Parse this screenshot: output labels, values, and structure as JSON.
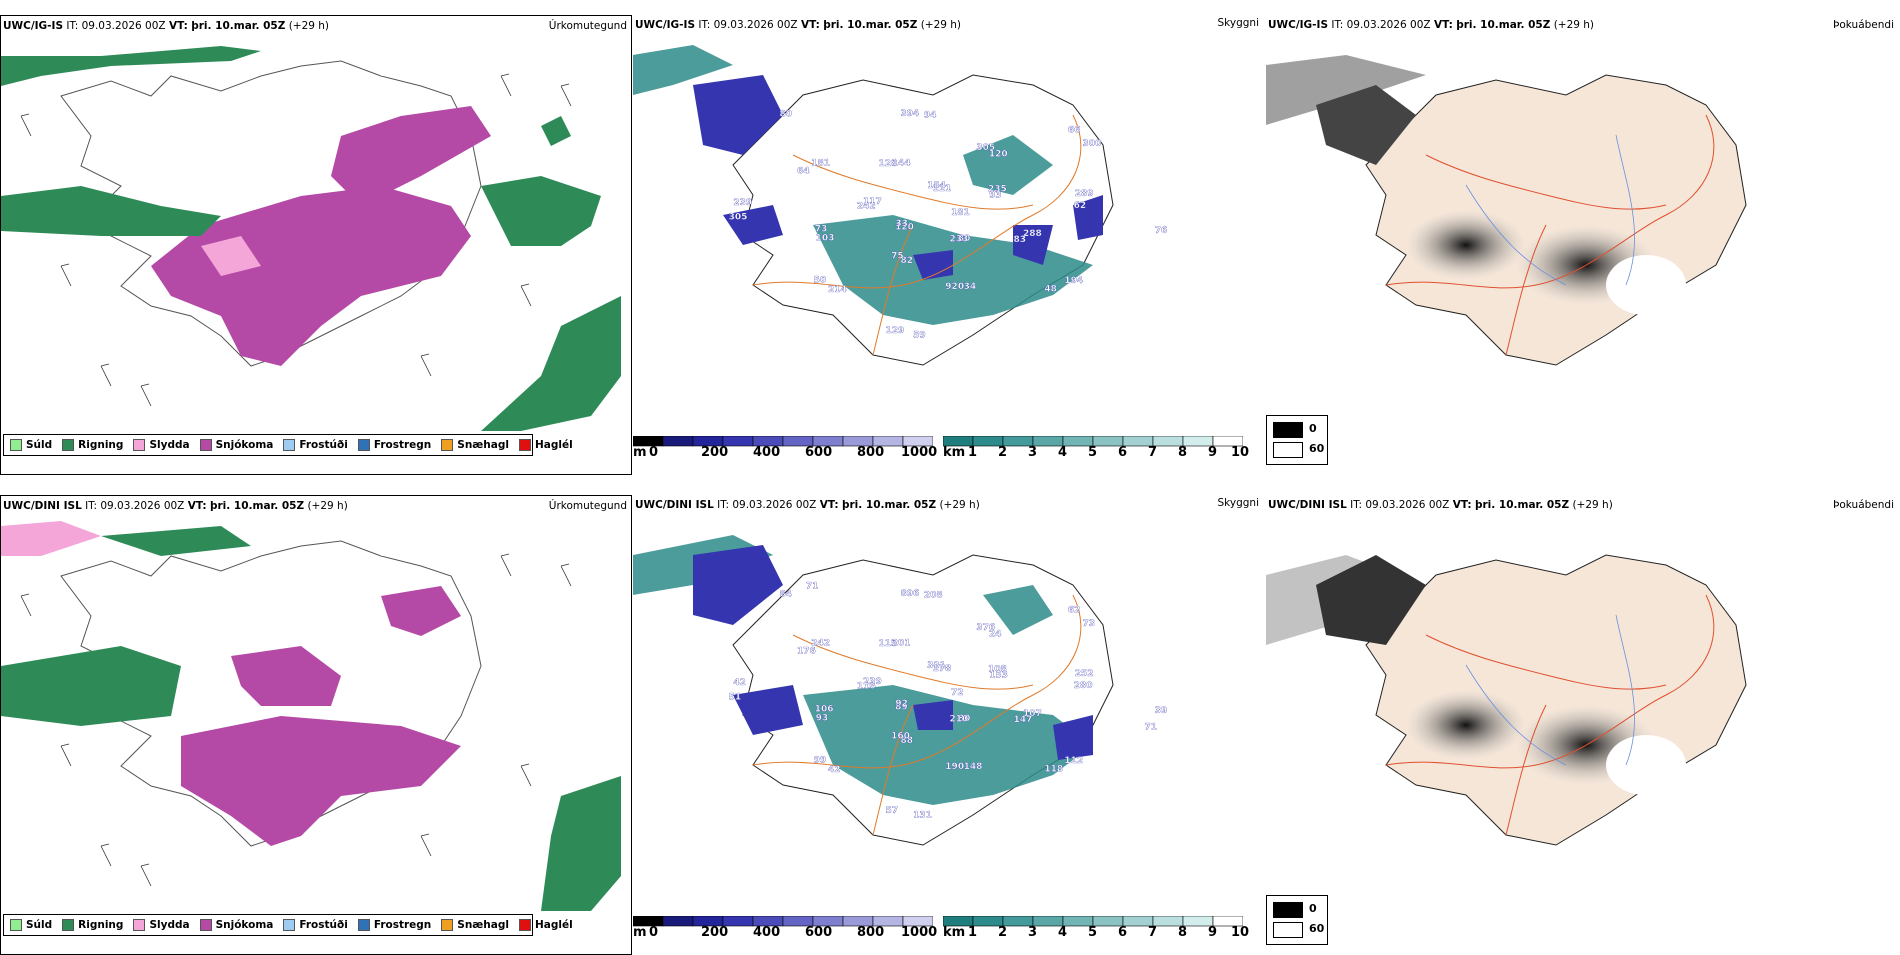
{
  "panels": {
    "top": {
      "precip": {
        "model": "UWC/IG-IS",
        "it": "IT: 09.03.2026 00Z",
        "vt_label": "VT:",
        "vt": "þri. 10.mar. 05Z",
        "lead": "(+29 h)",
        "type": "Úrkomutegund"
      },
      "cloud": {
        "model": "UWC/IG-IS",
        "it": "IT: 09.03.2026 00Z",
        "vt_label": "VT:",
        "vt": "þri. 10.mar. 05Z",
        "lead": "(+29 h)",
        "type": "Skyggni"
      },
      "vis": {
        "model": "UWC/IG-IS",
        "it": "IT: 09.03.2026 00Z",
        "vt_label": "VT:",
        "vt": "þri. 10.mar. 05Z",
        "lead": "(+29 h)",
        "type": "Þokuábendi"
      }
    },
    "bottom": {
      "precip": {
        "model": "UWC/DINI ISL",
        "it": "IT: 09.03.2026 00Z",
        "vt_label": "VT:",
        "vt": "þri. 10.mar. 05Z",
        "lead": "(+29 h)",
        "type": "Úrkomutegund"
      },
      "cloud": {
        "model": "UWC/DINI ISL",
        "it": "IT: 09.03.2026 00Z",
        "vt_label": "VT:",
        "vt": "þri. 10.mar. 05Z",
        "lead": "(+29 h)",
        "type": "Skyggni"
      },
      "vis": {
        "model": "UWC/DINI ISL",
        "it": "IT: 09.03.2026 00Z",
        "vt_label": "VT:",
        "vt": "þri. 10.mar. 05Z",
        "lead": "(+29 h)",
        "type": "Þokuábendi"
      }
    }
  },
  "precip_legend": [
    {
      "label": "Súld",
      "color": "#90ee90"
    },
    {
      "label": "Rigning",
      "color": "#2e8b57"
    },
    {
      "label": "Slydda",
      "color": "#f4a6d8"
    },
    {
      "label": "Snjókoma",
      "color": "#b54aa6"
    },
    {
      "label": "Frostúði",
      "color": "#9ecbf0"
    },
    {
      "label": "Frostregn",
      "color": "#2f72b8"
    },
    {
      "label": "Snæhagl",
      "color": "#f0a020"
    },
    {
      "label": "Haglél",
      "color": "#e01010"
    }
  ],
  "cloudbase_bar": {
    "unit": "m",
    "ticks": [
      "0",
      "200",
      "400",
      "600",
      "800",
      "1000"
    ],
    "colors": [
      "#000000",
      "#1a1a7a",
      "#24249a",
      "#3535b0",
      "#4b4bba",
      "#6464c4",
      "#7f7fcf",
      "#9a9ad9",
      "#b5b5e3",
      "#d0d0ee"
    ]
  },
  "visibility_bar": {
    "unit": "km",
    "ticks": [
      "1",
      "2",
      "3",
      "4",
      "5",
      "6",
      "7",
      "8",
      "9",
      "10"
    ],
    "colors": [
      "#1f7d7d",
      "#2e8b8b",
      "#44999a",
      "#5ba7a7",
      "#73b5b5",
      "#8bc3c3",
      "#a3d1d1",
      "#bbdfdf",
      "#d3ecec",
      "#ffffff"
    ]
  },
  "fog_key": [
    {
      "label": "0",
      "color": "#000000"
    },
    {
      "label": "60",
      "color": "#ffffff"
    }
  ],
  "cloud_labels_top": [
    "181",
    "120",
    "154",
    "80",
    "242",
    "235",
    "82",
    "128",
    "288",
    "103",
    "305",
    "34",
    "64",
    "289",
    "214",
    "394",
    "194",
    "305",
    "66",
    "59",
    "80",
    "76",
    "33",
    "111",
    "233",
    "117",
    "93",
    "75",
    "144",
    "83",
    "73",
    "120",
    "920",
    "181",
    "62",
    "50",
    "94",
    "48",
    "239",
    "300",
    "129"
  ],
  "cloud_labels_bottom": [
    "72",
    "89",
    "321",
    "80",
    "116",
    "108",
    "88",
    "115",
    "107",
    "93",
    "376",
    "148",
    "176",
    "252",
    "42",
    "896",
    "112",
    "51",
    "62",
    "131",
    "84",
    "39",
    "92",
    "178",
    "210",
    "239",
    "153",
    "160",
    "201",
    "147",
    "106",
    "24",
    "190",
    "242",
    "280",
    "99",
    "208",
    "118",
    "42",
    "73",
    "57",
    "71",
    "71"
  ],
  "colors": {
    "snow": "#b54aa6",
    "rain": "#2e8b57",
    "drizzle": "#90ee90",
    "sleet": "#f4a6d8",
    "land": "#f5e6d8",
    "road": "#e07a2a"
  }
}
